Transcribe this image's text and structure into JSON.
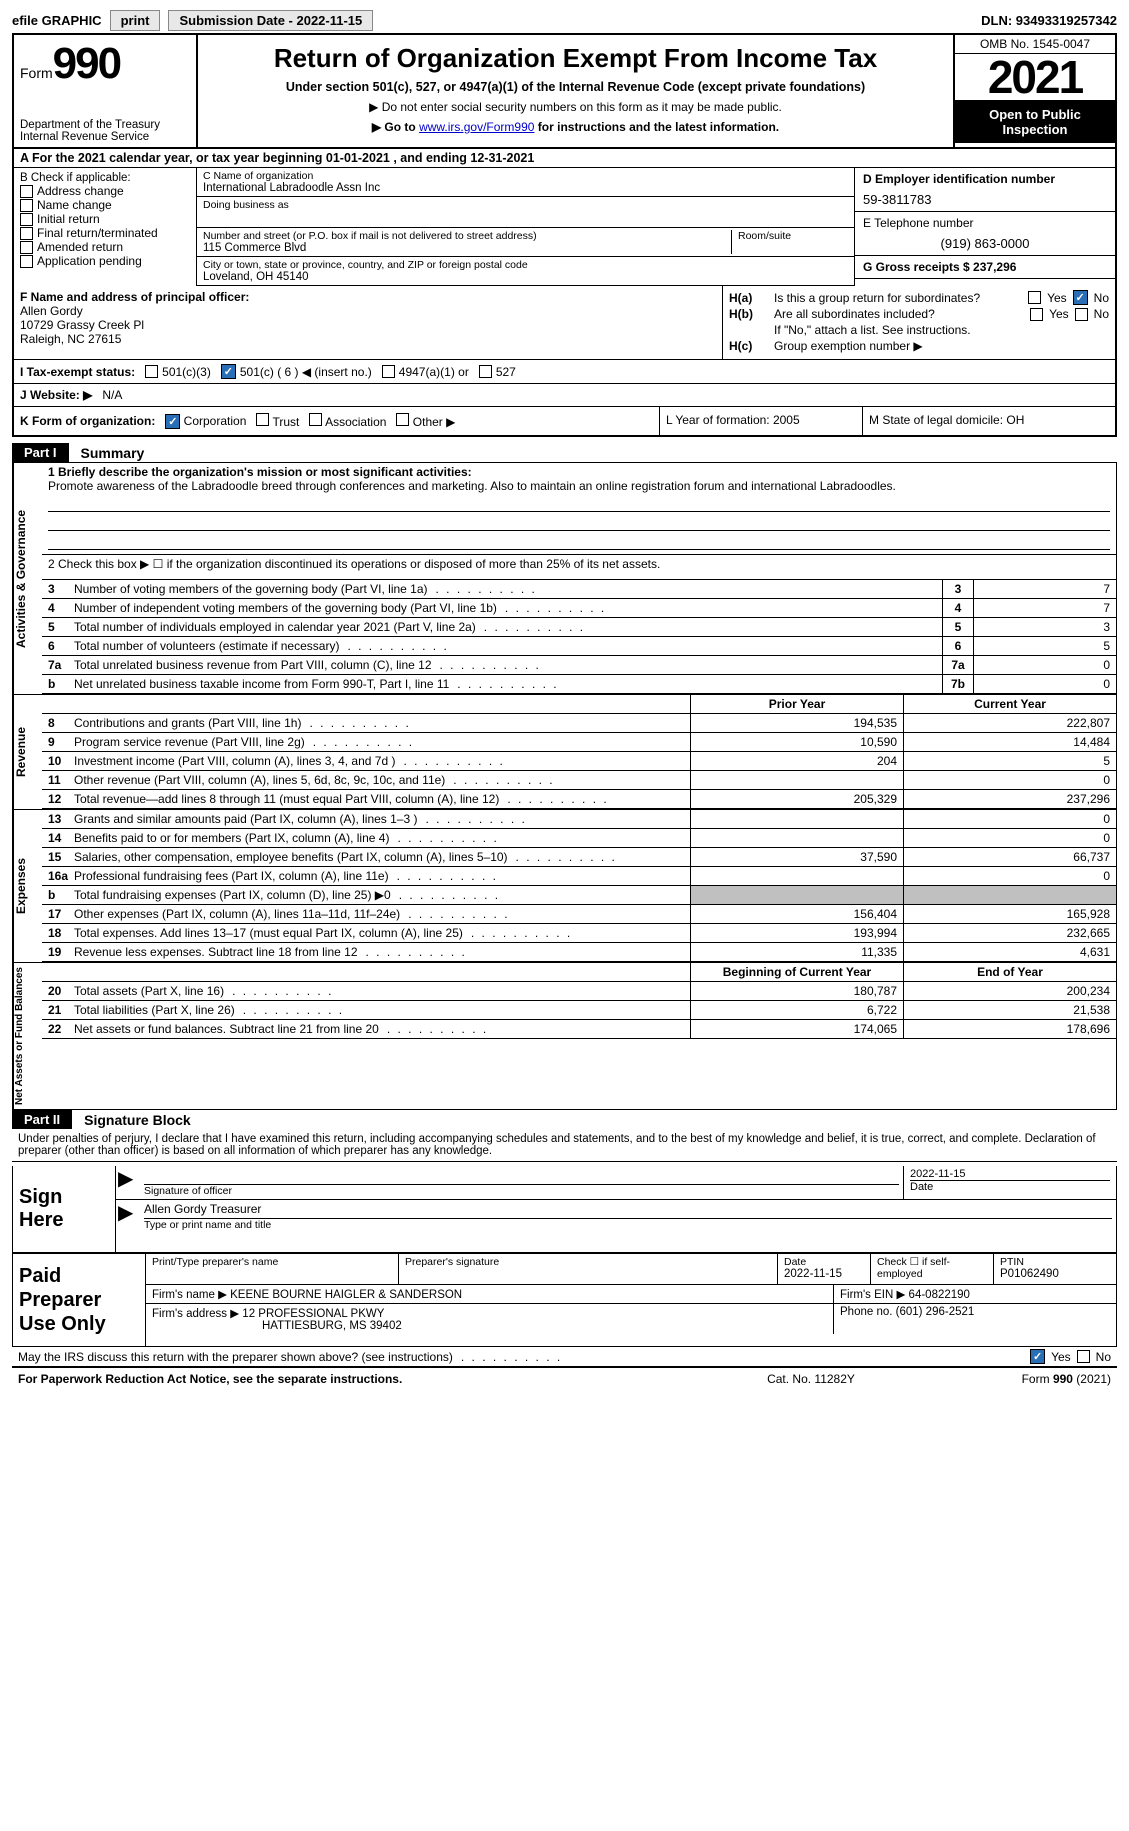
{
  "topbar": {
    "efile_label": "efile GRAPHIC",
    "print_btn": "print",
    "submission_btn": "Submission Date - 2022-11-15",
    "dln": "DLN: 93493319257342"
  },
  "header": {
    "form_word": "Form",
    "form_num": "990",
    "title": "Return of Organization Exempt From Income Tax",
    "subtitle": "Under section 501(c), 527, or 4947(a)(1) of the Internal Revenue Code (except private foundations)",
    "note1": "▶ Do not enter social security numbers on this form as it may be made public.",
    "note2_pre": "▶ Go to ",
    "note2_link": "www.irs.gov/Form990",
    "note2_post": " for instructions and the latest information.",
    "dept1": "Department of the Treasury",
    "dept2": "Internal Revenue Service",
    "omb": "OMB No. 1545-0047",
    "year": "2021",
    "open_public": "Open to Public Inspection"
  },
  "lineA": "A For the 2021 calendar year, or tax year beginning 01-01-2021   , and ending 12-31-2021",
  "colB": {
    "header": "B Check if applicable:",
    "items": [
      "Address change",
      "Name change",
      "Initial return",
      "Final return/terminated",
      "Amended return",
      "Application pending"
    ]
  },
  "colC": {
    "c_label": "C Name of organization",
    "org_name": "International Labradoodle Assn Inc",
    "dba_label": "Doing business as",
    "addr_label": "Number and street (or P.O. box if mail is not delivered to street address)",
    "room_label": "Room/suite",
    "addr": "115 Commerce Blvd",
    "city_label": "City or town, state or province, country, and ZIP or foreign postal code",
    "city": "Loveland, OH  45140"
  },
  "colD": {
    "d_label": "D Employer identification number",
    "ein": "59-3811783",
    "e_label": "E Telephone number",
    "phone": "(919) 863-0000",
    "g_label": "G Gross receipts $ 237,296"
  },
  "rowF": {
    "f_label": "F  Name and address of principal officer:",
    "name": "Allen Gordy",
    "addr1": "10729 Grassy Creek Pl",
    "addr2": "Raleigh, NC  27615"
  },
  "rowH": {
    "ha_label": "H(a)",
    "ha_text": "Is this a group return for subordinates?",
    "hb_label": "H(b)",
    "hb_text": "Are all subordinates included?",
    "h_note": "If \"No,\" attach a list. See instructions.",
    "hc_label": "H(c)",
    "hc_text": "Group exemption number ▶",
    "yes": "Yes",
    "no": "No"
  },
  "rowI": {
    "label": "I  Tax-exempt status:",
    "opts": [
      "501(c)(3)",
      "501(c) ( 6 ) ◀ (insert no.)",
      "4947(a)(1) or",
      "527"
    ]
  },
  "rowJ": {
    "label": "J  Website: ▶",
    "val": "N/A"
  },
  "rowK": {
    "label": "K Form of organization:",
    "opts": [
      "Corporation",
      "Trust",
      "Association",
      "Other ▶"
    ],
    "l_label": "L Year of formation: 2005",
    "m_label": "M State of legal domicile: OH"
  },
  "parts": {
    "p1_tab": "Part I",
    "p1_title": "Summary",
    "p2_tab": "Part II",
    "p2_title": "Signature Block"
  },
  "summary": {
    "vtabs": [
      "Activities & Governance",
      "Revenue",
      "Expenses",
      "Net Assets or Fund Balances"
    ],
    "line1_label": "1  Briefly describe the organization's mission or most significant activities:",
    "line1_text": "Promote awareness of the Labradoodle breed through conferences and marketing. Also to maintain an online registration forum and international Labradoodles.",
    "line2": "2    Check this box ▶ ☐ if the organization discontinued its operations or disposed of more than 25% of its net assets.",
    "rows_ag": [
      {
        "n": "3",
        "t": "Number of voting members of the governing body (Part VI, line 1a)",
        "box": "3",
        "val": "7"
      },
      {
        "n": "4",
        "t": "Number of independent voting members of the governing body (Part VI, line 1b)",
        "box": "4",
        "val": "7"
      },
      {
        "n": "5",
        "t": "Total number of individuals employed in calendar year 2021 (Part V, line 2a)",
        "box": "5",
        "val": "3"
      },
      {
        "n": "6",
        "t": "Total number of volunteers (estimate if necessary)",
        "box": "6",
        "val": "5"
      },
      {
        "n": "7a",
        "t": "Total unrelated business revenue from Part VIII, column (C), line 12",
        "box": "7a",
        "val": "0"
      },
      {
        "n": "b",
        "t": "Net unrelated business taxable income from Form 990-T, Part I, line 11",
        "box": "7b",
        "val": "0"
      }
    ],
    "hdr_prior": "Prior Year",
    "hdr_current": "Current Year",
    "rows_rev": [
      {
        "n": "8",
        "t": "Contributions and grants (Part VIII, line 1h)",
        "p": "194,535",
        "c": "222,807"
      },
      {
        "n": "9",
        "t": "Program service revenue (Part VIII, line 2g)",
        "p": "10,590",
        "c": "14,484"
      },
      {
        "n": "10",
        "t": "Investment income (Part VIII, column (A), lines 3, 4, and 7d )",
        "p": "204",
        "c": "5"
      },
      {
        "n": "11",
        "t": "Other revenue (Part VIII, column (A), lines 5, 6d, 8c, 9c, 10c, and 11e)",
        "p": "",
        "c": "0"
      },
      {
        "n": "12",
        "t": "Total revenue—add lines 8 through 11 (must equal Part VIII, column (A), line 12)",
        "p": "205,329",
        "c": "237,296"
      }
    ],
    "rows_exp": [
      {
        "n": "13",
        "t": "Grants and similar amounts paid (Part IX, column (A), lines 1–3 )",
        "p": "",
        "c": "0"
      },
      {
        "n": "14",
        "t": "Benefits paid to or for members (Part IX, column (A), line 4)",
        "p": "",
        "c": "0"
      },
      {
        "n": "15",
        "t": "Salaries, other compensation, employee benefits (Part IX, column (A), lines 5–10)",
        "p": "37,590",
        "c": "66,737"
      },
      {
        "n": "16a",
        "t": "Professional fundraising fees (Part IX, column (A), line 11e)",
        "p": "",
        "c": "0"
      },
      {
        "n": "b",
        "t": "Total fundraising expenses (Part IX, column (D), line 25) ▶0",
        "p": "SHADED",
        "c": "SHADED"
      },
      {
        "n": "17",
        "t": "Other expenses (Part IX, column (A), lines 11a–11d, 11f–24e)",
        "p": "156,404",
        "c": "165,928"
      },
      {
        "n": "18",
        "t": "Total expenses. Add lines 13–17 (must equal Part IX, column (A), line 25)",
        "p": "193,994",
        "c": "232,665"
      },
      {
        "n": "19",
        "t": "Revenue less expenses. Subtract line 18 from line 12",
        "p": "11,335",
        "c": "4,631"
      }
    ],
    "hdr_begin": "Beginning of Current Year",
    "hdr_end": "End of Year",
    "rows_net": [
      {
        "n": "20",
        "t": "Total assets (Part X, line 16)",
        "p": "180,787",
        "c": "200,234"
      },
      {
        "n": "21",
        "t": "Total liabilities (Part X, line 26)",
        "p": "6,722",
        "c": "21,538"
      },
      {
        "n": "22",
        "t": "Net assets or fund balances. Subtract line 21 from line 20",
        "p": "174,065",
        "c": "178,696"
      }
    ]
  },
  "sig": {
    "penalties": "Under penalties of perjury, I declare that I have examined this return, including accompanying schedules and statements, and to the best of my knowledge and belief, it is true, correct, and complete. Declaration of preparer (other than officer) is based on all information of which preparer has any knowledge.",
    "sign_here": "Sign Here",
    "sig_officer": "Signature of officer",
    "date_label": "Date",
    "sig_date": "2022-11-15",
    "name_title": "Allen Gordy  Treasurer",
    "name_title_label": "Type or print name and title"
  },
  "prep": {
    "label": "Paid Preparer Use Only",
    "h1": "Print/Type preparer's name",
    "h2": "Preparer's signature",
    "h3_label": "Date",
    "h3_val": "2022-11-15",
    "h4": "Check ☐ if self-employed",
    "h5_label": "PTIN",
    "h5_val": "P01062490",
    "firm_name_label": "Firm's name    ▶",
    "firm_name": "KEENE BOURNE HAIGLER & SANDERSON",
    "firm_ein_label": "Firm's EIN ▶",
    "firm_ein": "64-0822190",
    "firm_addr_label": "Firm's address ▶",
    "firm_addr1": "12 PROFESSIONAL PKWY",
    "firm_addr2": "HATTIESBURG, MS  39402",
    "phone_label": "Phone no.",
    "phone": "(601) 296-2521"
  },
  "footer": {
    "mayirs": "May the IRS discuss this return with the preparer shown above? (see instructions)",
    "yes": "Yes",
    "no": "No",
    "paperwork": "For Paperwork Reduction Act Notice, see the separate instructions.",
    "cat": "Cat. No. 11282Y",
    "formref": "Form 990 (2021)"
  }
}
